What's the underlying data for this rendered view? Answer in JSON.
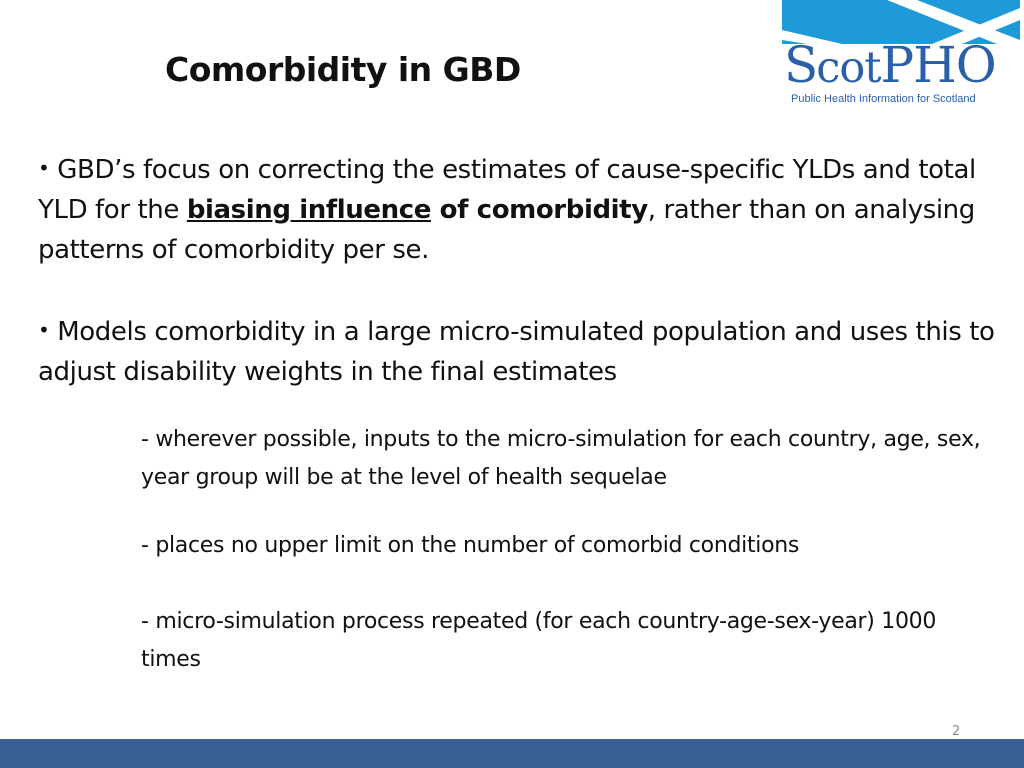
{
  "slide": {
    "title": "Comorbidity in GBD",
    "page_number": "2",
    "colors": {
      "footer_bar": "#3a5f95",
      "logo_blue": "#1f9ad8",
      "logo_text": "#2a5fa9"
    }
  },
  "logo": {
    "word_part1_big": "S",
    "word_part1_small": "cot",
    "word_part2": "PHO",
    "tagline": "Public Health Information for Scotland"
  },
  "bullets": [
    {
      "marker": "•",
      "text_before": " GBD’s focus on correcting the estimates of cause-specific YLDs and total YLD for the ",
      "underlined_bold": "biasing influence",
      "bold": " of comorbidity",
      "text_after": ", rather than on analysing patterns of comorbidity per se."
    },
    {
      "marker": "•",
      "text": " Models comorbidity in a large micro-simulated population and uses this to adjust disability weights in the final estimates"
    }
  ],
  "sub_points": [
    "- wherever possible, inputs to the micro-simulation for each country, age, sex, year group will be at the level of health sequelae",
    "- places no upper limit on the number of comorbid conditions",
    "- micro-simulation process repeated (for each country-age-sex-year) 1000 times"
  ]
}
